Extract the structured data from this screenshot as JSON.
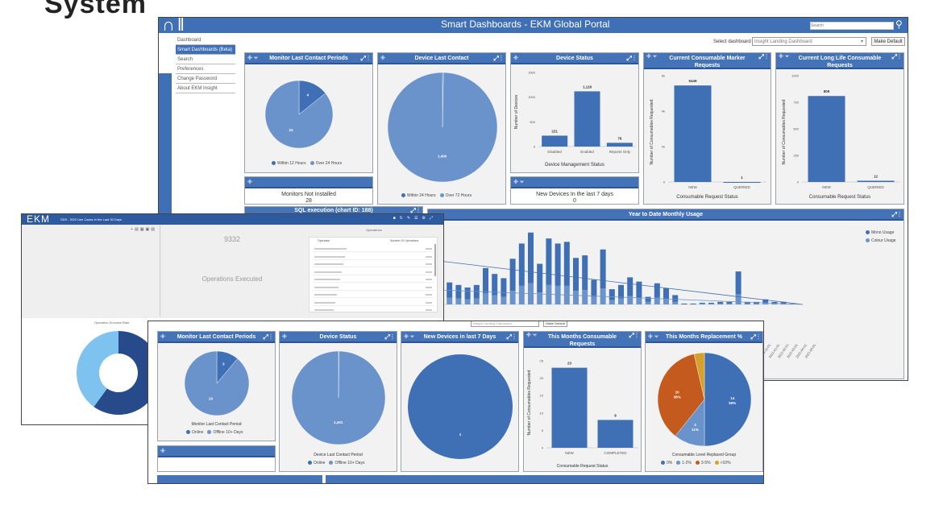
{
  "heading": "System",
  "colors": {
    "header": "#4473b8",
    "pie_dark": "#3f6fb4",
    "pie_light": "#6a93cc",
    "orange": "#c55a1e",
    "gold": "#d4a22b",
    "donut_dark": "#264a8a",
    "donut_light": "#7ec3f0"
  },
  "portal": {
    "title": "Smart Dashboards - EKM Global Portal",
    "search_placeholder": "Search",
    "menu": [
      "Dashboard",
      "Smart Dashboards (Beta)",
      "Search",
      "Preferences",
      "Change Password",
      "About EKM Insight"
    ],
    "select_label": "Select dashboard",
    "select_value": "Insight Landing Dashboard",
    "make_default": "Make Default",
    "panels": {
      "monitor": {
        "title": "Monitor Last Contact Periods",
        "legend": [
          "Within 12 Hours",
          "Over 24 Hours"
        ]
      },
      "device_last": {
        "title": "Device Last Contact",
        "legend": [
          "Within 24 Hours",
          "Over 72 Hours"
        ]
      },
      "device_status": {
        "title": "Device Status",
        "xlabel": "Device Management Status",
        "ylabel": "Number of Devices"
      },
      "marker": {
        "title": "Current Consumable Marker Requests",
        "xlabel": "Consumable Request Status",
        "ylabel": "Number of Consumables Requested"
      },
      "longlife": {
        "title": "Current Long Life Consumable Requests",
        "xlabel": "Consumable Request Status",
        "ylabel": "Number of Consumables Requested"
      },
      "not_installed": {
        "label": "Monitors Not Installed",
        "value": "28"
      },
      "new_devices": {
        "label": "New Devices In the last 7 days",
        "value": "0"
      },
      "sql": {
        "title": "SQL execution (chart ID: 188)"
      },
      "ytd": {
        "title": "Year to Date Monthly Usage",
        "legend": [
          "Mono Usage",
          "Colour Usage"
        ]
      }
    }
  },
  "ekm": {
    "logo": "EKM",
    "title": "SDS - SDS Use Cases in the Last 30 Days",
    "count": "9332",
    "count_label": "Operations Executed",
    "ops_title": "Operations",
    "ops_cols": [
      "Operation",
      "Number Of Operations"
    ],
    "success_title": "Operation Success Rate"
  },
  "second": {
    "select_value": "Insight Landing Dashboard",
    "make_default": "Make Default",
    "monitor": {
      "title": "Monitor Last Contact Periods",
      "subtitle": "Monitor Last Contact Period",
      "legend": [
        "Online",
        "Offline 10+ Days"
      ]
    },
    "device_status": {
      "title": "Device Status",
      "subtitle": "Device Last Contact Period",
      "legend": [
        "Online",
        "Offline 10+ Days"
      ]
    },
    "new_devices": {
      "title": "New Devices in last 7 Days"
    },
    "consumable": {
      "title": "This Months Consumable Requests",
      "xlabel": "Consumable Request Status",
      "ylabel": "Number of Consumables Requested"
    },
    "replacement": {
      "title": "This Months Replacement %",
      "subtitle": "Consumable Level Replaced Group",
      "legend": [
        "0%",
        "1-2%",
        "3-5%",
        ">10%"
      ]
    }
  },
  "chart_data": [
    {
      "id": "monitorA",
      "type": "pie",
      "labels": [
        "Within 12 Hours",
        "Over 24 Hours"
      ],
      "values": [
        4,
        24
      ],
      "data_labels": [
        "4",
        "24"
      ]
    },
    {
      "id": "deviceLastA",
      "type": "pie",
      "labels": [
        "Within 24 Hours",
        "Over 72 Hours"
      ],
      "values": [
        4,
        1400
      ],
      "data_labels": [
        "",
        "1,400"
      ]
    },
    {
      "id": "deviceStatusA",
      "type": "bar",
      "categories": [
        "Disabled",
        "Enabled",
        "Reports Only"
      ],
      "values": [
        221,
        1118,
        76
      ],
      "data_labels": [
        "221",
        "1,118",
        "76"
      ],
      "ylim": [
        0,
        1500
      ],
      "yticks": [
        "0",
        "500",
        "1000",
        "1500"
      ]
    },
    {
      "id": "markerA",
      "type": "bar",
      "categories": [
        "NEW",
        "QUERIED"
      ],
      "values": [
        5449,
        1
      ],
      "data_labels": [
        "5449",
        "1"
      ],
      "ylim": [
        0,
        6000
      ],
      "yticks": [
        "0",
        "2k",
        "4k",
        "6k"
      ]
    },
    {
      "id": "longlifeA",
      "type": "bar",
      "categories": [
        "NEW",
        "QUERIED"
      ],
      "values": [
        809,
        12
      ],
      "data_labels": [
        "809",
        "12"
      ],
      "ylim": [
        0,
        1000
      ],
      "yticks": [
        "0",
        "250",
        "500",
        "750",
        "1000"
      ]
    },
    {
      "id": "ytd",
      "type": "bar",
      "stacked": true,
      "series": [
        {
          "name": "Mono Usage",
          "values": [
            26,
            18,
            16,
            14,
            16,
            30,
            25,
            22,
            38,
            50,
            60,
            34,
            55,
            50,
            52,
            39,
            41,
            20,
            46,
            13,
            16,
            22,
            19,
            6,
            17,
            13,
            8,
            1,
            1,
            1,
            1,
            2,
            2,
            27,
            2,
            2,
            4,
            2,
            2,
            1
          ]
        },
        {
          "name": "Colour Usage",
          "values": [
            11,
            8,
            7,
            6,
            7,
            13,
            11,
            9,
            16,
            22,
            25,
            14,
            23,
            22,
            22,
            16,
            17,
            9,
            19,
            5,
            7,
            10,
            8,
            3,
            8,
            6,
            3,
            0,
            0,
            1,
            1,
            1,
            1,
            12,
            1,
            1,
            2,
            1,
            1,
            0
          ]
        }
      ],
      "xticks": [
        "2020-09-01",
        "2020-10-01",
        "2020-11-01",
        "2020-12-01",
        "2021-01-01",
        "2021-02-01",
        "2021-03-01",
        "2021-04-01",
        "2021-05-01"
      ]
    },
    {
      "id": "monitorC",
      "type": "pie",
      "labels": [
        "Online",
        "Offline 10+ Days"
      ],
      "values": [
        3,
        24
      ],
      "data_labels": [
        "3",
        "24"
      ]
    },
    {
      "id": "deviceStatusC",
      "type": "pie",
      "labels": [
        "Online",
        "Offline 10+ Days"
      ],
      "values": [
        3,
        1401
      ],
      "data_labels": [
        "",
        "1,401"
      ]
    },
    {
      "id": "newDevC",
      "type": "pie",
      "labels": [
        "New"
      ],
      "values": [
        1
      ],
      "data_labels": [
        "1"
      ]
    },
    {
      "id": "consumableC",
      "type": "bar",
      "categories": [
        "NEW",
        "COMPLETED"
      ],
      "values": [
        23,
        8
      ],
      "data_labels": [
        "23",
        "8"
      ],
      "ylim": [
        0,
        25
      ],
      "yticks": [
        "0",
        "5",
        "10",
        "15",
        "20",
        "25"
      ]
    },
    {
      "id": "replacementC",
      "type": "pie",
      "labels": [
        "0%",
        "1-2%",
        "3-5%",
        ">10%"
      ],
      "values": [
        14,
        3,
        10,
        1
      ],
      "data_labels": [
        "14\n50%",
        "3\n11%",
        "10\n36%",
        ""
      ]
    },
    {
      "id": "successB",
      "type": "donut",
      "labels": [
        "Success",
        "Failure"
      ],
      "values": [
        60,
        40
      ]
    }
  ]
}
